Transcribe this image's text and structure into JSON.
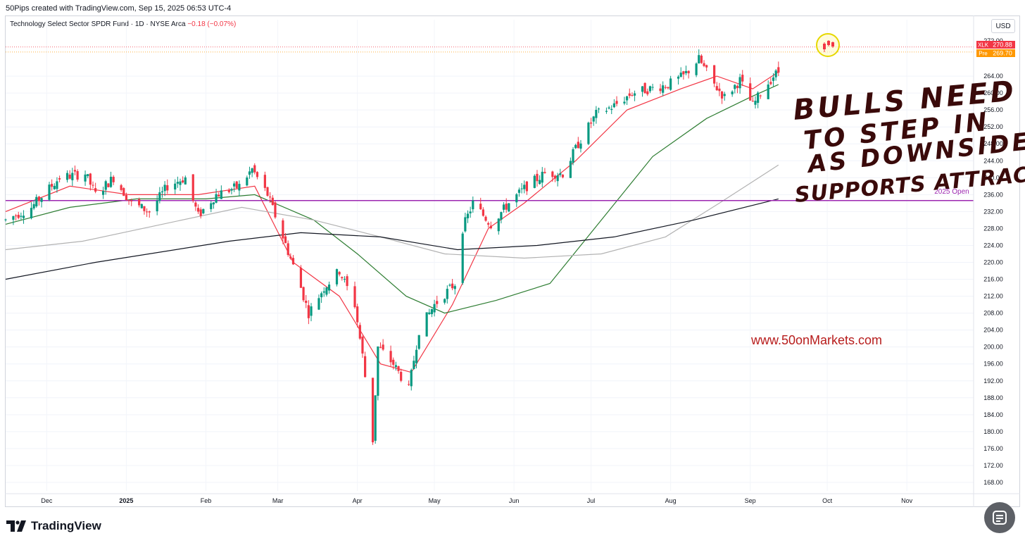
{
  "header": {
    "created_text": "50Pips created with TradingView.com, Sep 15, 2025 06:53 UTC-4",
    "symbol_title": "Technology Select Sector SPDR Fund · 1D · NYSE Arca",
    "change": "−0.18 (−0.07%)",
    "currency": "USD"
  },
  "price_labels": {
    "xlk_tag": "XLK",
    "xlk_value": "270.88",
    "pre_tag": "Pre",
    "pre_value": "269.70",
    "top_partial": "272.00"
  },
  "annotations": {
    "handwritten_lines": [
      "BULLS NEED",
      "TO STEP IN",
      "AS DOWNSIDE",
      "SUPPORTS ATTRACT"
    ],
    "website": "www.50onMarkets.com",
    "line_label": "2025 Open"
  },
  "footer": {
    "brand": "TradingView"
  },
  "colors": {
    "bull": "#089981",
    "bear": "#f23645",
    "ema_fast": "#f23645",
    "sma_50": "#2e7d32",
    "sma_100": "#b2b2b2",
    "sma_200": "#131722",
    "open_line": "#9c27b0",
    "handwriting": "#3a0a0a",
    "website": "#b71c1c"
  },
  "chart_data": {
    "type": "candlestick",
    "symbol": "XLK",
    "timeframe": "1D",
    "ylim": [
      166,
      274
    ],
    "y_ticks": [
      168,
      172,
      176,
      180,
      184,
      188,
      192,
      196,
      200,
      204,
      208,
      212,
      216,
      220,
      224,
      228,
      232,
      236,
      240,
      244,
      248,
      252,
      256,
      260,
      264
    ],
    "x_ticks": [
      {
        "label": "Dec",
        "date": "2024-12-01"
      },
      {
        "label": "2025",
        "date": "2025-01-01"
      },
      {
        "label": "Feb",
        "date": "2025-02-01"
      },
      {
        "label": "Mar",
        "date": "2025-03-01"
      },
      {
        "label": "Apr",
        "date": "2025-04-01"
      },
      {
        "label": "May",
        "date": "2025-05-01"
      },
      {
        "label": "Jun",
        "date": "2025-06-01"
      },
      {
        "label": "Jul",
        "date": "2025-07-01"
      },
      {
        "label": "Aug",
        "date": "2025-08-01"
      },
      {
        "label": "Sep",
        "date": "2025-09-01"
      },
      {
        "label": "Oct",
        "date": "2025-10-01"
      },
      {
        "label": "Nov",
        "date": "2025-11-01"
      }
    ],
    "x_range": [
      "2024-11-15",
      "2025-11-27"
    ],
    "horizontal_lines": [
      {
        "label": "2025 Open",
        "value": 234.6
      },
      {
        "value": 270.88
      },
      {
        "value": 269.7
      }
    ],
    "price_path": [
      [
        "2024-11-15",
        230
      ],
      [
        "2024-11-25",
        233
      ],
      [
        "2024-12-06",
        240
      ],
      [
        "2024-12-16",
        241
      ],
      [
        "2024-12-20",
        236
      ],
      [
        "2024-12-27",
        240
      ],
      [
        "2025-01-03",
        234
      ],
      [
        "2025-01-10",
        232
      ],
      [
        "2025-01-17",
        238
      ],
      [
        "2025-01-24",
        240
      ],
      [
        "2025-01-29",
        231
      ],
      [
        "2025-02-05",
        236
      ],
      [
        "2025-02-14",
        238
      ],
      [
        "2025-02-19",
        242
      ],
      [
        "2025-02-25",
        236
      ],
      [
        "2025-03-03",
        226
      ],
      [
        "2025-03-10",
        214
      ],
      [
        "2025-03-13",
        208
      ],
      [
        "2025-03-19",
        214
      ],
      [
        "2025-03-25",
        218
      ],
      [
        "2025-03-31",
        210
      ],
      [
        "2025-04-03",
        198
      ],
      [
        "2025-04-07",
        178
      ],
      [
        "2025-04-09",
        200
      ],
      [
        "2025-04-15",
        196
      ],
      [
        "2025-04-21",
        190
      ],
      [
        "2025-04-25",
        204
      ],
      [
        "2025-05-01",
        210
      ],
      [
        "2025-05-09",
        215
      ],
      [
        "2025-05-12",
        228
      ],
      [
        "2025-05-16",
        234
      ],
      [
        "2025-05-23",
        229
      ],
      [
        "2025-05-30",
        234
      ],
      [
        "2025-06-06",
        238
      ],
      [
        "2025-06-13",
        241
      ],
      [
        "2025-06-20",
        241
      ],
      [
        "2025-06-26",
        248
      ],
      [
        "2025-07-03",
        255
      ],
      [
        "2025-07-10",
        257
      ],
      [
        "2025-07-17",
        260
      ],
      [
        "2025-07-24",
        261
      ],
      [
        "2025-07-31",
        262
      ],
      [
        "2025-08-06",
        264
      ],
      [
        "2025-08-12",
        268
      ],
      [
        "2025-08-18",
        262
      ],
      [
        "2025-08-22",
        259
      ],
      [
        "2025-08-28",
        263
      ],
      [
        "2025-09-02",
        257
      ],
      [
        "2025-09-05",
        260
      ],
      [
        "2025-09-10",
        264
      ],
      [
        "2025-09-12",
        265
      ]
    ],
    "moving_averages": [
      {
        "name": "EMA fast",
        "color": "#f23645",
        "points": [
          [
            "2024-11-15",
            232
          ],
          [
            "2024-12-10",
            238
          ],
          [
            "2025-01-02",
            236
          ],
          [
            "2025-01-29",
            236
          ],
          [
            "2025-02-20",
            238
          ],
          [
            "2025-03-07",
            220
          ],
          [
            "2025-03-25",
            212
          ],
          [
            "2025-04-10",
            196
          ],
          [
            "2025-04-22",
            194
          ],
          [
            "2025-05-08",
            210
          ],
          [
            "2025-05-22",
            228
          ],
          [
            "2025-06-05",
            234
          ],
          [
            "2025-06-25",
            244
          ],
          [
            "2025-07-15",
            256
          ],
          [
            "2025-08-05",
            261
          ],
          [
            "2025-08-19",
            264
          ],
          [
            "2025-09-02",
            261
          ],
          [
            "2025-09-12",
            265
          ]
        ]
      },
      {
        "name": "SMA 50",
        "color": "#2e7d32",
        "points": [
          [
            "2024-11-15",
            229
          ],
          [
            "2024-12-10",
            233
          ],
          [
            "2025-01-05",
            235
          ],
          [
            "2025-02-01",
            235
          ],
          [
            "2025-02-20",
            236
          ],
          [
            "2025-03-15",
            230
          ],
          [
            "2025-04-01",
            222
          ],
          [
            "2025-04-20",
            212
          ],
          [
            "2025-05-05",
            208
          ],
          [
            "2025-05-25",
            211
          ],
          [
            "2025-06-15",
            215
          ],
          [
            "2025-07-05",
            230
          ],
          [
            "2025-07-25",
            245
          ],
          [
            "2025-08-15",
            254
          ],
          [
            "2025-09-01",
            259
          ],
          [
            "2025-09-12",
            262
          ]
        ]
      },
      {
        "name": "SMA 100",
        "color": "#b2b2b2",
        "points": [
          [
            "2024-11-15",
            223
          ],
          [
            "2024-12-15",
            225
          ],
          [
            "2025-01-15",
            229
          ],
          [
            "2025-02-15",
            233
          ],
          [
            "2025-03-15",
            230
          ],
          [
            "2025-04-10",
            226
          ],
          [
            "2025-05-05",
            222
          ],
          [
            "2025-06-05",
            221
          ],
          [
            "2025-07-05",
            222
          ],
          [
            "2025-07-30",
            226
          ],
          [
            "2025-08-20",
            234
          ],
          [
            "2025-09-12",
            243
          ]
        ]
      },
      {
        "name": "SMA 200",
        "color": "#131722",
        "points": [
          [
            "2024-11-15",
            216
          ],
          [
            "2024-12-20",
            220
          ],
          [
            "2025-02-10",
            225
          ],
          [
            "2025-03-10",
            227
          ],
          [
            "2025-04-10",
            226
          ],
          [
            "2025-05-10",
            223
          ],
          [
            "2025-06-10",
            224
          ],
          [
            "2025-07-10",
            226
          ],
          [
            "2025-08-10",
            230
          ],
          [
            "2025-09-12",
            235
          ]
        ]
      }
    ]
  }
}
